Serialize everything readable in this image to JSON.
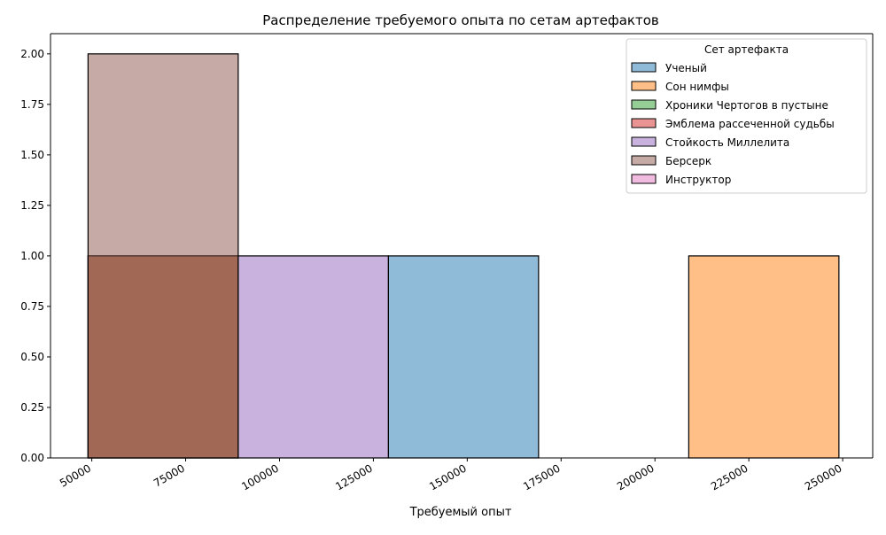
{
  "chart_data": {
    "type": "bar",
    "title": "Распределение требуемого опыта по сетам артефактов",
    "xlabel": "Требуемый опыт",
    "ylabel": "",
    "xlim": [
      39000,
      258000
    ],
    "ylim": [
      0,
      2.1
    ],
    "grid": false,
    "x_ticks": [
      50000,
      75000,
      100000,
      125000,
      150000,
      175000,
      200000,
      225000,
      250000
    ],
    "y_ticks": [
      0.0,
      0.25,
      0.5,
      0.75,
      1.0,
      1.25,
      1.5,
      1.75,
      2.0
    ],
    "bin_edges": [
      49000,
      89000,
      129000,
      169000,
      209000,
      249000
    ],
    "legend": {
      "title": "Сет артефакта",
      "position": "upper right"
    },
    "series": [
      {
        "name": "Ученый",
        "color": "#1f77b4",
        "values": [
          0,
          0,
          1,
          0,
          0
        ]
      },
      {
        "name": "Сон нимфы",
        "color": "#ff7f0e",
        "values": [
          0,
          0,
          0,
          0,
          1
        ]
      },
      {
        "name": "Хроники Чертогов в пустыне",
        "color": "#2ca02c",
        "values": [
          1,
          0,
          0,
          0,
          0
        ]
      },
      {
        "name": "Эмблема рассеченной судьбы",
        "color": "#d62728",
        "values": [
          1,
          0,
          0,
          0,
          0
        ]
      },
      {
        "name": "Стойкость Миллелита",
        "color": "#9467bd",
        "values": [
          0,
          1,
          0,
          0,
          0
        ]
      },
      {
        "name": "Берсерк",
        "color": "#8c564b",
        "values": [
          2,
          0,
          0,
          0,
          0
        ]
      },
      {
        "name": "Инструктор",
        "color": "#e377c2",
        "values": [
          0,
          0,
          0,
          0,
          0
        ]
      }
    ]
  }
}
